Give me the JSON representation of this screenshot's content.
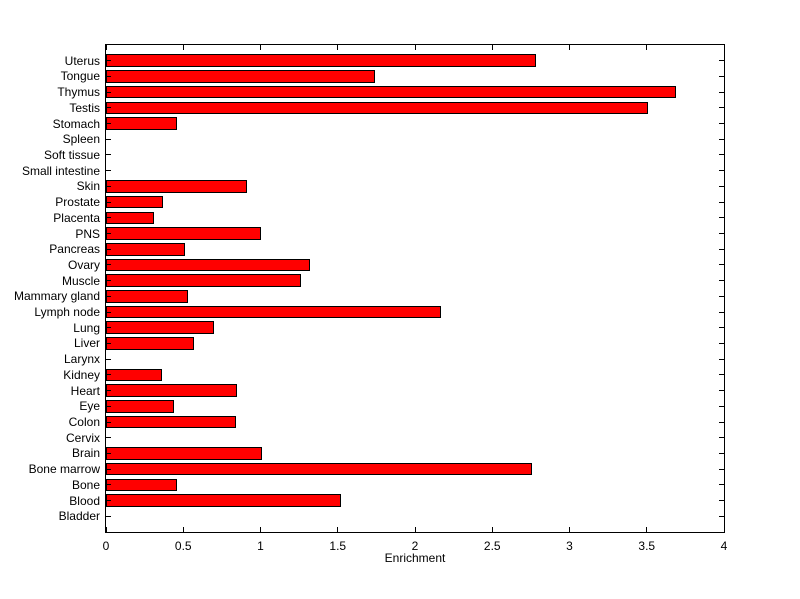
{
  "figure": {
    "background_color": "#FFFFFF",
    "axis_color": "#000000"
  },
  "chart_data": {
    "type": "bar",
    "orientation": "horizontal",
    "title": "",
    "xlabel": "Enrichment",
    "ylabel": "",
    "xlim": [
      0,
      4
    ],
    "grid": false,
    "legend": null,
    "bar_color": "#FF0000",
    "bar_edge_color": "#000000",
    "xticks": [
      0,
      0.5,
      1,
      1.5,
      2,
      2.5,
      3,
      3.5,
      4
    ],
    "xtick_labels": [
      "0",
      "0.5",
      "1",
      "1.5",
      "2",
      "2.5",
      "3",
      "3.5",
      "4"
    ],
    "categories_top_to_bottom": [
      "Uterus",
      "Tongue",
      "Thymus",
      "Testis",
      "Stomach",
      "Spleen",
      "Soft tissue",
      "Small intestine",
      "Skin",
      "Prostate",
      "Placenta",
      "PNS",
      "Pancreas",
      "Ovary",
      "Muscle",
      "Mammary gland",
      "Lymph node",
      "Lung",
      "Liver",
      "Larynx",
      "Kidney",
      "Heart",
      "Eye",
      "Colon",
      "Cervix",
      "Brain",
      "Bone marrow",
      "Bone",
      "Blood",
      "Bladder"
    ],
    "values": [
      2.78,
      1.74,
      3.69,
      3.51,
      0.46,
      0,
      0,
      0,
      0.91,
      0.37,
      0.31,
      1.0,
      0.51,
      1.32,
      1.26,
      0.53,
      2.17,
      0.7,
      0.57,
      0,
      0.36,
      0.85,
      0.44,
      0.84,
      0,
      1.01,
      2.76,
      0.46,
      1.52,
      0
    ]
  }
}
